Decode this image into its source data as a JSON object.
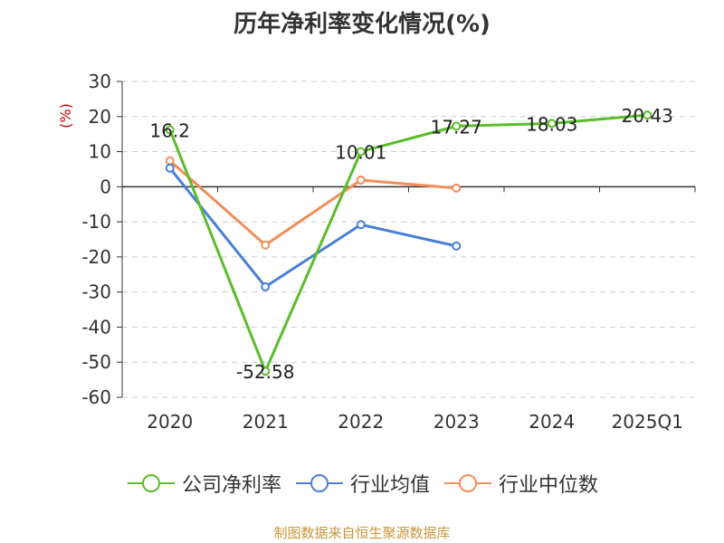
{
  "title": "历年净利率变化情况(%)",
  "footer": "制图数据来自恒生聚源数据库",
  "chart_data": {
    "type": "line",
    "title": "历年净利率变化情况(%)",
    "ylabel": "(%)",
    "categories": [
      "2020",
      "2021",
      "2022",
      "2023",
      "2024",
      "2025Q1"
    ],
    "ylim": [
      -60,
      30
    ],
    "yticks": [
      30,
      20,
      10,
      0,
      -10,
      -20,
      -30,
      -40,
      -50,
      -60
    ],
    "grid": true,
    "legend_position": "bottom",
    "series": [
      {
        "name": "公司净利率",
        "color": "#5bbd2b",
        "values": [
          16.2,
          -52.58,
          10.01,
          17.27,
          18.03,
          20.43
        ],
        "labels": [
          "16.2",
          "-52.58",
          "10.01",
          "17.27",
          "18.03",
          "20.43"
        ]
      },
      {
        "name": "行业均值",
        "color": "#4a7fd6",
        "values": [
          5.3,
          -28.5,
          -10.8,
          -16.9,
          null,
          null
        ]
      },
      {
        "name": "行业中位数",
        "color": "#f28e5a",
        "values": [
          7.4,
          -16.6,
          1.9,
          -0.4,
          null,
          null
        ]
      }
    ]
  }
}
